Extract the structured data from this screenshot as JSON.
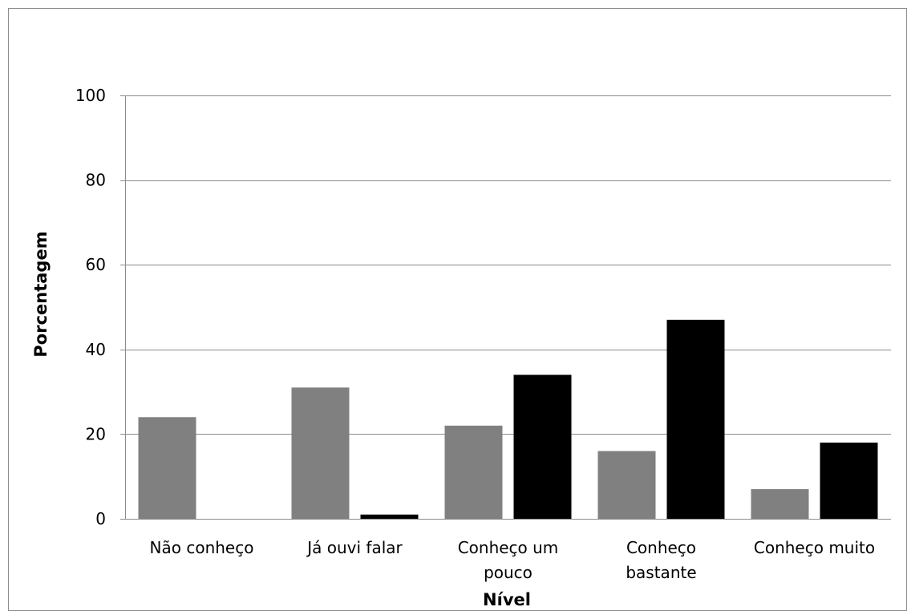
{
  "chart_data": {
    "type": "bar",
    "title": "",
    "xlabel": "Nível",
    "ylabel": "Porcentagem",
    "ylim": [
      0,
      100
    ],
    "yticks": [
      0,
      20,
      40,
      60,
      80,
      100
    ],
    "grid": true,
    "legend": "none",
    "categories": [
      [
        "Não conheço"
      ],
      [
        "Já ouvi falar"
      ],
      [
        "Conheço um",
        "pouco"
      ],
      [
        "Conheço",
        "bastante"
      ],
      [
        "Conheço muito"
      ]
    ],
    "series": [
      {
        "color": "#808080",
        "values": [
          24,
          31,
          22,
          16,
          7
        ]
      },
      {
        "color": "#000000",
        "values": [
          0,
          1,
          34,
          47,
          18
        ]
      }
    ]
  }
}
